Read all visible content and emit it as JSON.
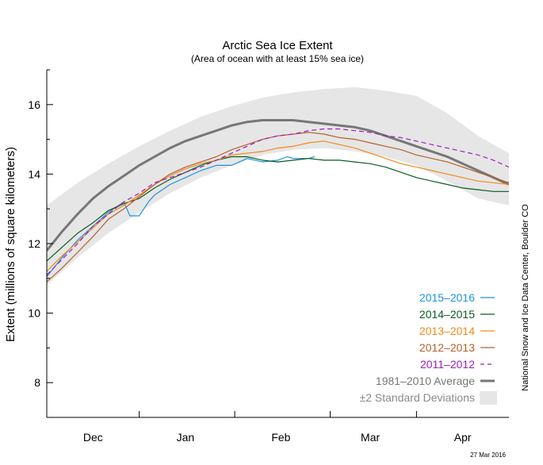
{
  "chart_data": {
    "type": "line",
    "title": "Arctic Sea Ice Extent",
    "subtitle": "(Area of ocean with at least 15% sea ice)",
    "ylabel": "Extent (millions of square kilometers)",
    "xlabel": "",
    "ylim": [
      7,
      17
    ],
    "xlim": [
      0,
      150
    ],
    "yticks": [
      8,
      10,
      12,
      14,
      16
    ],
    "xticks": [
      {
        "label": "Dec",
        "x": 15
      },
      {
        "label": "Jan",
        "x": 45
      },
      {
        "label": "Feb",
        "x": 76
      },
      {
        "label": "Mar",
        "x": 105
      },
      {
        "label": "Apr",
        "x": 135
      }
    ],
    "month_boundaries": [
      30,
      61,
      92,
      120
    ],
    "grid": false,
    "legend_position": "bottom-right",
    "band": {
      "name": "±2 Standard Deviations",
      "color": "#e6e6e6",
      "x": [
        0,
        10,
        20,
        30,
        40,
        50,
        60,
        70,
        80,
        90,
        100,
        110,
        120,
        130,
        140,
        150
      ],
      "upper": [
        13.1,
        13.75,
        14.3,
        14.8,
        15.25,
        15.65,
        15.95,
        16.2,
        16.35,
        16.45,
        16.5,
        16.4,
        16.25,
        15.75,
        15.1,
        14.6
      ],
      "lower": [
        10.8,
        11.6,
        12.3,
        12.9,
        13.45,
        13.9,
        14.25,
        14.55,
        14.7,
        14.75,
        14.65,
        14.5,
        14.25,
        13.8,
        13.3,
        13.1
      ]
    },
    "series": [
      {
        "name": "2015–2016",
        "color": "#1f94dc",
        "dash": false,
        "width": 1.2,
        "x": [
          0,
          5,
          10,
          15,
          20,
          25,
          27,
          30,
          33,
          35,
          40,
          45,
          50,
          55,
          60,
          65,
          70,
          75,
          78,
          80,
          85,
          87
        ],
        "y": [
          11.05,
          11.6,
          12.1,
          12.5,
          12.9,
          13.2,
          12.8,
          12.8,
          13.2,
          13.4,
          13.7,
          13.9,
          14.1,
          14.25,
          14.25,
          14.45,
          14.35,
          14.4,
          14.5,
          14.45,
          14.45,
          14.5
        ]
      },
      {
        "name": "2014–2015",
        "color": "#0b5d1e",
        "dash": false,
        "width": 1.2,
        "x": [
          0,
          5,
          10,
          15,
          20,
          25,
          30,
          35,
          40,
          45,
          50,
          55,
          60,
          65,
          70,
          75,
          80,
          85,
          90,
          95,
          100,
          105,
          110,
          115,
          120,
          125,
          130,
          135,
          140,
          145,
          150
        ],
        "y": [
          11.5,
          11.9,
          12.3,
          12.6,
          12.95,
          13.15,
          13.3,
          13.6,
          13.85,
          14.05,
          14.25,
          14.4,
          14.5,
          14.5,
          14.4,
          14.35,
          14.4,
          14.45,
          14.4,
          14.4,
          14.35,
          14.3,
          14.2,
          14.05,
          13.9,
          13.8,
          13.7,
          13.6,
          13.55,
          13.5,
          13.5
        ]
      },
      {
        "name": "2013–2014",
        "color": "#f28a1a",
        "dash": false,
        "width": 1.2,
        "x": [
          0,
          5,
          10,
          15,
          20,
          25,
          30,
          35,
          40,
          45,
          50,
          55,
          60,
          65,
          70,
          75,
          80,
          85,
          90,
          95,
          100,
          105,
          110,
          115,
          120,
          125,
          130,
          135,
          140,
          145,
          150
        ],
        "y": [
          11.2,
          11.65,
          12.05,
          12.45,
          12.85,
          13.1,
          13.4,
          13.7,
          13.95,
          14.15,
          14.3,
          14.4,
          14.55,
          14.6,
          14.65,
          14.75,
          14.8,
          14.9,
          14.95,
          14.85,
          14.75,
          14.6,
          14.45,
          14.3,
          14.2,
          14.1,
          14.0,
          13.9,
          13.8,
          13.75,
          13.7
        ]
      },
      {
        "name": "2012–2013",
        "color": "#b5602a",
        "dash": false,
        "width": 1.2,
        "x": [
          0,
          5,
          10,
          15,
          20,
          25,
          30,
          35,
          40,
          45,
          50,
          55,
          60,
          65,
          70,
          75,
          80,
          85,
          90,
          95,
          100,
          105,
          110,
          115,
          120,
          125,
          130,
          135,
          140,
          145,
          150
        ],
        "y": [
          10.9,
          11.3,
          11.75,
          12.2,
          12.7,
          13.0,
          13.35,
          13.7,
          14.0,
          14.2,
          14.35,
          14.5,
          14.7,
          14.85,
          15.0,
          15.1,
          15.15,
          15.2,
          15.15,
          15.05,
          15.0,
          14.9,
          14.8,
          14.7,
          14.55,
          14.45,
          14.35,
          14.2,
          14.05,
          13.9,
          13.75
        ]
      },
      {
        "name": "2011–2012",
        "color": "#9b1fbf",
        "dash": true,
        "width": 1.2,
        "x": [
          0,
          5,
          10,
          15,
          20,
          25,
          30,
          35,
          40,
          45,
          50,
          55,
          60,
          65,
          70,
          75,
          80,
          85,
          90,
          95,
          100,
          105,
          110,
          115,
          120,
          125,
          130,
          135,
          140,
          145,
          150
        ],
        "y": [
          11.1,
          11.55,
          12.0,
          12.5,
          12.85,
          13.2,
          13.45,
          13.75,
          13.9,
          14.05,
          14.2,
          14.4,
          14.6,
          14.8,
          15.0,
          15.1,
          15.15,
          15.25,
          15.3,
          15.3,
          15.25,
          15.2,
          15.1,
          15.05,
          14.95,
          14.85,
          14.75,
          14.65,
          14.55,
          14.4,
          14.2
        ]
      },
      {
        "name": "1981–2010 Average",
        "color": "#777777",
        "dash": false,
        "width": 3,
        "x": [
          0,
          5,
          10,
          15,
          20,
          25,
          30,
          35,
          40,
          45,
          50,
          55,
          60,
          65,
          70,
          75,
          80,
          85,
          90,
          95,
          100,
          105,
          110,
          115,
          120,
          125,
          130,
          135,
          140,
          145,
          150
        ],
        "y": [
          11.8,
          12.35,
          12.85,
          13.3,
          13.65,
          13.95,
          14.25,
          14.5,
          14.75,
          14.95,
          15.1,
          15.25,
          15.4,
          15.5,
          15.55,
          15.55,
          15.55,
          15.5,
          15.45,
          15.4,
          15.35,
          15.25,
          15.1,
          14.95,
          14.8,
          14.65,
          14.5,
          14.3,
          14.1,
          13.9,
          13.7
        ]
      }
    ]
  },
  "credit": "National Snow and Ice Data Center, Boulder CO",
  "date_stamp": "27 Mar 2016"
}
